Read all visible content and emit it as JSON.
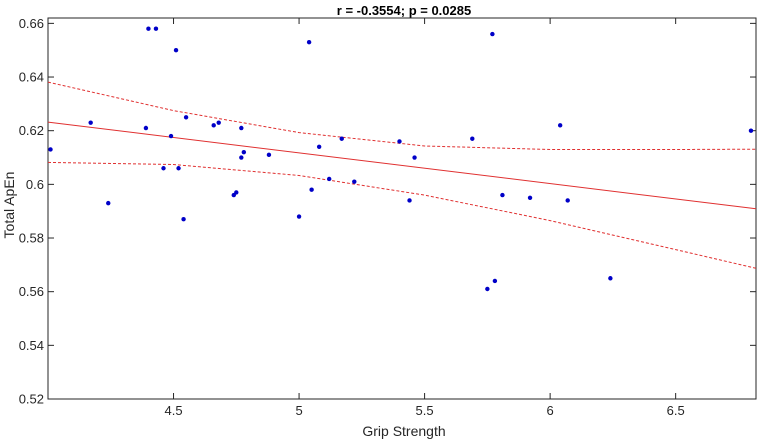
{
  "chart_data": {
    "type": "scatter",
    "title": "r = -0.3554; p = 0.0285",
    "xlabel": "Grip Strength",
    "ylabel": "Total ApEn",
    "xlim": [
      4.0,
      6.82
    ],
    "ylim": [
      0.52,
      0.662
    ],
    "xticks": [
      4.5,
      5,
      5.5,
      6,
      6.5
    ],
    "xtick_labels": [
      "4.5",
      "5",
      "5.5",
      "6",
      "6.5"
    ],
    "yticks": [
      0.52,
      0.54,
      0.56,
      0.58,
      0.6,
      0.62,
      0.64,
      0.66
    ],
    "ytick_labels": [
      "0.52",
      "0.54",
      "0.56",
      "0.58",
      "0.6",
      "0.62",
      "0.64",
      "0.66"
    ],
    "grid": false,
    "colors": {
      "points": "#0000c8",
      "fit": "#e03030",
      "axis": "#262626"
    },
    "points": {
      "x": [
        4.01,
        4.17,
        4.24,
        4.39,
        4.4,
        4.43,
        4.46,
        4.49,
        4.51,
        4.52,
        4.54,
        4.55,
        4.66,
        4.68,
        4.74,
        4.75,
        4.77,
        4.77,
        4.78,
        4.88,
        5.0,
        5.04,
        5.05,
        5.08,
        5.12,
        5.17,
        5.22,
        5.4,
        5.44,
        5.46,
        5.69,
        5.75,
        5.77,
        5.78,
        5.81,
        5.92,
        6.04,
        6.07,
        6.24,
        6.8
      ],
      "y": [
        0.613,
        0.623,
        0.593,
        0.621,
        0.658,
        0.658,
        0.606,
        0.618,
        0.65,
        0.606,
        0.587,
        0.625,
        0.622,
        0.623,
        0.596,
        0.597,
        0.61,
        0.621,
        0.612,
        0.611,
        0.588,
        0.653,
        0.598,
        0.614,
        0.602,
        0.617,
        0.601,
        0.616,
        0.594,
        0.61,
        0.617,
        0.561,
        0.656,
        0.564,
        0.596,
        0.595,
        0.622,
        0.594,
        0.565,
        0.62
      ]
    },
    "fit_line": {
      "x": [
        4.0,
        6.82
      ],
      "y": [
        0.6232,
        0.5909
      ]
    },
    "confidence_band": {
      "x": [
        4.0,
        4.5,
        5.0,
        5.5,
        6.0,
        6.5,
        6.82
      ],
      "upper": [
        0.6381,
        0.6275,
        0.6193,
        0.6143,
        0.613,
        0.613,
        0.6131
      ],
      "lower": [
        0.6082,
        0.6074,
        0.6033,
        0.596,
        0.5865,
        0.5757,
        0.5687
      ]
    }
  }
}
